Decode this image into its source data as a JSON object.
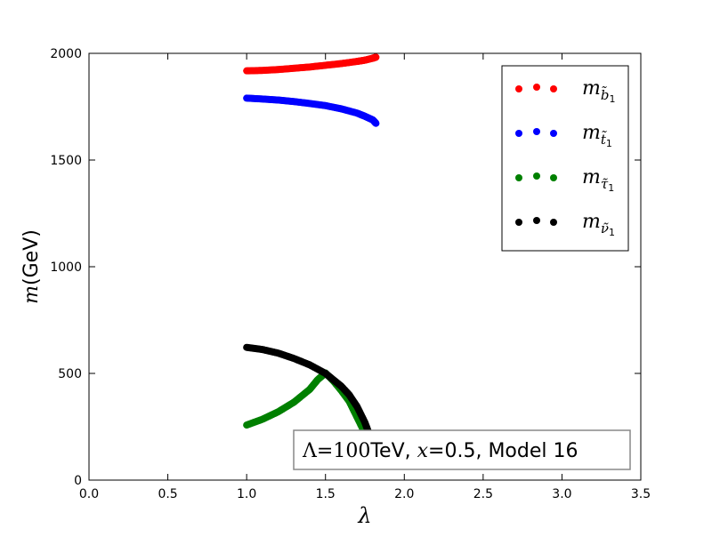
{
  "chart_data": {
    "type": "scatter",
    "xlabel": "λ",
    "ylabel": {
      "math": "m",
      "unit": "(GeV)"
    },
    "xlim": [
      0,
      3.5
    ],
    "ylim": [
      0,
      2000
    ],
    "xticks": [
      "0.0",
      "0.5",
      "1.0",
      "1.5",
      "2.0",
      "2.5",
      "3.0",
      "3.5"
    ],
    "yticks": [
      "0",
      "500",
      "1000",
      "1500",
      "2000"
    ],
    "xtick_values": [
      0,
      0.5,
      1,
      1.5,
      2,
      2.5,
      3,
      3.5
    ],
    "ytick_values": [
      0,
      500,
      1000,
      1500,
      2000
    ],
    "grid": false,
    "legend_position": "top-right",
    "annotation": {
      "lambda": "Λ",
      "eq": "=",
      "value": "100",
      "rest1": "TeV, ",
      "x": "x",
      "rest2": "=0.5, Model 16"
    },
    "series": [
      {
        "name": "m_{b̃1}",
        "color": "#ff0000",
        "legend_main": "m",
        "legend_sub": "b̃",
        "legend_subsub": "1",
        "x": [
          1.0,
          1.1,
          1.2,
          1.3,
          1.4,
          1.5,
          1.6,
          1.7,
          1.75,
          1.8,
          1.82
        ],
        "y": [
          1918,
          1920,
          1924,
          1930,
          1936,
          1944,
          1952,
          1962,
          1968,
          1977,
          1982
        ]
      },
      {
        "name": "m_{t̃1}",
        "color": "#0000ff",
        "legend_main": "m",
        "legend_sub": "t̃",
        "legend_subsub": "1",
        "x": [
          1.0,
          1.1,
          1.2,
          1.3,
          1.4,
          1.5,
          1.6,
          1.7,
          1.75,
          1.8,
          1.82
        ],
        "y": [
          1790,
          1786,
          1781,
          1774,
          1765,
          1755,
          1740,
          1720,
          1705,
          1688,
          1672
        ]
      },
      {
        "name": "m_{τ̃1}",
        "color": "#008000",
        "legend_main": "m",
        "legend_sub": "τ̃",
        "legend_subsub": "1",
        "x": [
          1.0,
          1.1,
          1.2,
          1.3,
          1.4,
          1.45,
          1.5,
          1.55,
          1.6,
          1.65,
          1.7,
          1.75,
          1.78,
          1.8,
          1.82
        ],
        "y": [
          258,
          285,
          320,
          365,
          425,
          470,
          502,
          465,
          420,
          370,
          295,
          220,
          170,
          120,
          90
        ]
      },
      {
        "name": "m_{ν̃1}",
        "color": "#000000",
        "legend_main": "m",
        "legend_sub": "ν̃",
        "legend_subsub": "1",
        "x": [
          1.0,
          1.1,
          1.2,
          1.3,
          1.4,
          1.5,
          1.55,
          1.6,
          1.65,
          1.7,
          1.75,
          1.78,
          1.8,
          1.82
        ],
        "y": [
          622,
          612,
          595,
          570,
          540,
          500,
          470,
          440,
          400,
          345,
          270,
          210,
          150,
          95
        ]
      }
    ]
  }
}
